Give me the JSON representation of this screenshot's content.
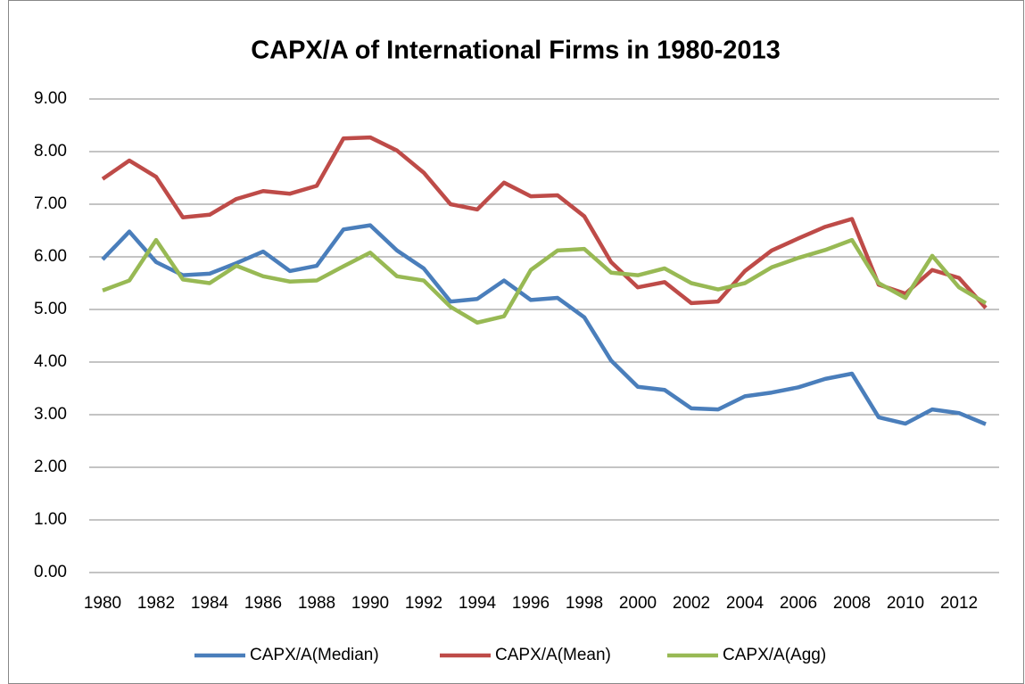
{
  "chart_data": {
    "type": "line",
    "title": "CAPX/A of International Firms in 1980-2013",
    "x": [
      1980,
      1981,
      1982,
      1983,
      1984,
      1985,
      1986,
      1987,
      1988,
      1989,
      1990,
      1991,
      1992,
      1993,
      1994,
      1995,
      1996,
      1997,
      1998,
      1999,
      2000,
      2001,
      2002,
      2003,
      2004,
      2005,
      2006,
      2007,
      2008,
      2009,
      2010,
      2011,
      2012,
      2013
    ],
    "xlim": [
      1979.5,
      2013.5
    ],
    "xticks": [
      1980,
      1982,
      1984,
      1986,
      1988,
      1990,
      1992,
      1994,
      1996,
      1998,
      2000,
      2002,
      2004,
      2006,
      2008,
      2010,
      2012
    ],
    "ylim": [
      0,
      9
    ],
    "yticks": [
      {
        "value": 0,
        "label": "0.00"
      },
      {
        "value": 1,
        "label": "1.00"
      },
      {
        "value": 2,
        "label": "2.00"
      },
      {
        "value": 3,
        "label": "3.00"
      },
      {
        "value": 4,
        "label": "4.00"
      },
      {
        "value": 5,
        "label": "5.00"
      },
      {
        "value": 6,
        "label": "6.00"
      },
      {
        "value": 7,
        "label": "7.00"
      },
      {
        "value": 8,
        "label": "8.00"
      },
      {
        "value": 9,
        "label": "9.00"
      }
    ],
    "grid": true,
    "legend": "bottom",
    "series": [
      {
        "name": "CAPX/A(Median)",
        "color": "#4a7ebb",
        "values": [
          5.95,
          6.48,
          5.9,
          5.65,
          5.68,
          5.88,
          6.1,
          5.73,
          5.83,
          6.52,
          6.6,
          6.12,
          5.78,
          5.15,
          5.2,
          5.55,
          5.18,
          5.22,
          4.85,
          4.03,
          3.53,
          3.47,
          3.12,
          3.1,
          3.35,
          3.42,
          3.52,
          3.68,
          3.78,
          2.95,
          2.83,
          3.1,
          3.03,
          2.82
        ]
      },
      {
        "name": "CAPX/A(Mean)",
        "color": "#be4b48",
        "values": [
          7.48,
          7.83,
          7.52,
          6.75,
          6.8,
          7.1,
          7.25,
          7.2,
          7.35,
          8.25,
          8.27,
          8.02,
          7.6,
          7.0,
          6.9,
          7.41,
          7.15,
          7.17,
          6.77,
          5.9,
          5.42,
          5.52,
          5.12,
          5.15,
          5.73,
          6.12,
          6.35,
          6.57,
          6.72,
          5.47,
          5.3,
          5.75,
          5.6,
          5.03
        ]
      },
      {
        "name": "CAPX/A(Agg)",
        "color": "#98b954",
        "values": [
          5.36,
          5.55,
          6.32,
          5.57,
          5.5,
          5.83,
          5.63,
          5.53,
          5.55,
          5.82,
          6.08,
          5.63,
          5.55,
          5.05,
          4.75,
          4.87,
          5.75,
          6.12,
          6.15,
          5.7,
          5.65,
          5.78,
          5.5,
          5.38,
          5.5,
          5.8,
          5.98,
          6.13,
          6.32,
          5.5,
          5.22,
          6.02,
          5.42,
          5.12
        ]
      }
    ]
  }
}
